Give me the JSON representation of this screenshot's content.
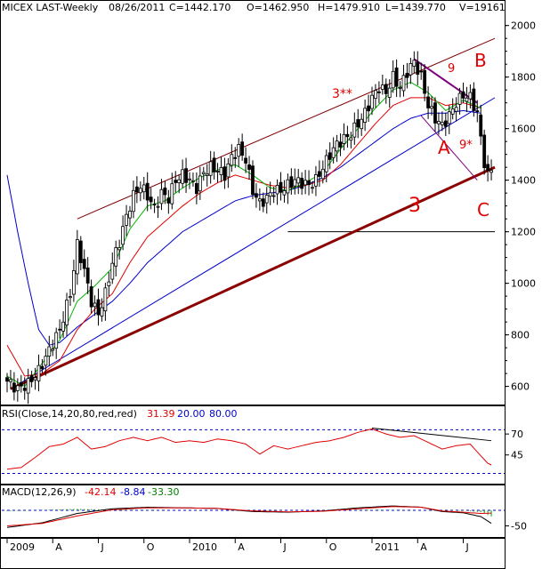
{
  "header": {
    "symbol": "MICEX LAST-Weekly",
    "date": "08/26/2011",
    "close": "C=1442.170",
    "open": "O=1462.950",
    "high": "H=1479.910",
    "low": "L=1439.770",
    "volume": "V=19161"
  },
  "colors": {
    "candle": "#000000",
    "ma_fast": "#00b400",
    "ma_mid": "#e00000",
    "ma_slow": "#0000cc",
    "channel": "#800000",
    "trendline": "#8b0000",
    "wedge": "#800080",
    "annotation": "#e00000",
    "rsi": "#e00000",
    "macd_line": "#000000",
    "macd_signal": "#e00000",
    "macd_hist": "#00a000"
  },
  "annotations": {
    "b": "B",
    "a": "A",
    "c": "C",
    "three": "3",
    "three_star": "3**",
    "nine": "9",
    "nine_star": "9*"
  },
  "rsi_panel": {
    "title": "RSI(Close,14,20,80,red,red)",
    "value": "31.39",
    "lower": "20.00",
    "upper": "80.00",
    "ticks": [
      "70",
      "45"
    ]
  },
  "macd_panel": {
    "title": "MACD(12,26,9)",
    "macd": "-42.14",
    "signal": "-8.84",
    "hist": "-33.30",
    "ticks": [
      "-50"
    ]
  },
  "chart_data": {
    "type": "candlestick",
    "title": "MICEX LAST-Weekly",
    "ylim": [
      540,
      2030
    ],
    "yticks": [
      600,
      800,
      1000,
      1200,
      1400,
      1600,
      1800,
      2000
    ],
    "ytick_labels": [
      "600",
      "800",
      "1000",
      "1200",
      "1400",
      "1600",
      "1800",
      "2000"
    ],
    "x_labels": [
      "2009",
      "A",
      "J",
      "O",
      "2010",
      "A",
      "J",
      "O",
      "2011",
      "A",
      "J"
    ],
    "x_label_weeks": [
      0,
      13,
      26,
      39,
      52,
      65,
      78,
      91,
      104,
      117,
      130
    ],
    "n_weeks": 139,
    "series": [
      {
        "name": "MICEX LAST",
        "close_anchors": [
          [
            0,
            620
          ],
          [
            3,
            590
          ],
          [
            6,
            610
          ],
          [
            9,
            660
          ],
          [
            12,
            740
          ],
          [
            15,
            820
          ],
          [
            18,
            960
          ],
          [
            20,
            1150
          ],
          [
            22,
            1050
          ],
          [
            24,
            930
          ],
          [
            26,
            880
          ],
          [
            28,
            960
          ],
          [
            30,
            1080
          ],
          [
            32,
            1160
          ],
          [
            34,
            1260
          ],
          [
            36,
            1340
          ],
          [
            38,
            1380
          ],
          [
            40,
            1340
          ],
          [
            42,
            1290
          ],
          [
            44,
            1350
          ],
          [
            46,
            1330
          ],
          [
            48,
            1400
          ],
          [
            50,
            1420
          ],
          [
            52,
            1400
          ],
          [
            54,
            1370
          ],
          [
            56,
            1430
          ],
          [
            58,
            1450
          ],
          [
            60,
            1440
          ],
          [
            62,
            1420
          ],
          [
            64,
            1490
          ],
          [
            66,
            1520
          ],
          [
            68,
            1480
          ],
          [
            70,
            1360
          ],
          [
            72,
            1310
          ],
          [
            74,
            1330
          ],
          [
            76,
            1360
          ],
          [
            78,
            1360
          ],
          [
            80,
            1380
          ],
          [
            82,
            1400
          ],
          [
            84,
            1390
          ],
          [
            86,
            1380
          ],
          [
            88,
            1400
          ],
          [
            90,
            1450
          ],
          [
            92,
            1500
          ],
          [
            94,
            1540
          ],
          [
            96,
            1560
          ],
          [
            98,
            1580
          ],
          [
            100,
            1620
          ],
          [
            102,
            1660
          ],
          [
            104,
            1720
          ],
          [
            106,
            1760
          ],
          [
            108,
            1740
          ],
          [
            110,
            1800
          ],
          [
            112,
            1760
          ],
          [
            114,
            1820
          ],
          [
            116,
            1860
          ],
          [
            118,
            1800
          ],
          [
            120,
            1690
          ],
          [
            122,
            1640
          ],
          [
            124,
            1610
          ],
          [
            126,
            1650
          ],
          [
            128,
            1700
          ],
          [
            130,
            1730
          ],
          [
            132,
            1720
          ],
          [
            134,
            1660
          ],
          [
            135,
            1560
          ],
          [
            136,
            1470
          ],
          [
            137,
            1420
          ],
          [
            138,
            1440
          ]
        ]
      }
    ],
    "moving_averages": {
      "fast": [
        [
          0,
          640
        ],
        [
          5,
          600
        ],
        [
          10,
          690
        ],
        [
          15,
          780
        ],
        [
          20,
          930
        ],
        [
          25,
          990
        ],
        [
          30,
          1060
        ],
        [
          35,
          1210
        ],
        [
          40,
          1300
        ],
        [
          45,
          1320
        ],
        [
          50,
          1370
        ],
        [
          55,
          1410
        ],
        [
          60,
          1440
        ],
        [
          65,
          1460
        ],
        [
          70,
          1420
        ],
        [
          75,
          1370
        ],
        [
          80,
          1360
        ],
        [
          85,
          1390
        ],
        [
          90,
          1430
        ],
        [
          95,
          1520
        ],
        [
          100,
          1600
        ],
        [
          105,
          1680
        ],
        [
          110,
          1750
        ],
        [
          115,
          1780
        ],
        [
          120,
          1740
        ],
        [
          125,
          1670
        ],
        [
          130,
          1710
        ],
        [
          135,
          1680
        ]
      ],
      "mid": [
        [
          0,
          760
        ],
        [
          5,
          640
        ],
        [
          10,
          650
        ],
        [
          15,
          700
        ],
        [
          20,
          820
        ],
        [
          25,
          900
        ],
        [
          30,
          960
        ],
        [
          35,
          1080
        ],
        [
          40,
          1180
        ],
        [
          45,
          1240
        ],
        [
          50,
          1300
        ],
        [
          55,
          1350
        ],
        [
          60,
          1390
        ],
        [
          65,
          1420
        ],
        [
          70,
          1400
        ],
        [
          75,
          1380
        ],
        [
          80,
          1370
        ],
        [
          85,
          1380
        ],
        [
          90,
          1400
        ],
        [
          95,
          1460
        ],
        [
          100,
          1540
        ],
        [
          105,
          1620
        ],
        [
          110,
          1690
        ],
        [
          115,
          1720
        ],
        [
          120,
          1720
        ],
        [
          125,
          1690
        ],
        [
          130,
          1700
        ],
        [
          135,
          1680
        ]
      ],
      "slow": [
        [
          0,
          1420
        ],
        [
          3,
          1200
        ],
        [
          6,
          1000
        ],
        [
          9,
          820
        ],
        [
          12,
          760
        ],
        [
          15,
          770
        ],
        [
          20,
          830
        ],
        [
          25,
          880
        ],
        [
          30,
          930
        ],
        [
          35,
          1000
        ],
        [
          40,
          1080
        ],
        [
          45,
          1140
        ],
        [
          50,
          1200
        ],
        [
          55,
          1240
        ],
        [
          60,
          1280
        ],
        [
          65,
          1320
        ],
        [
          70,
          1340
        ],
        [
          75,
          1350
        ],
        [
          80,
          1360
        ],
        [
          85,
          1380
        ],
        [
          90,
          1410
        ],
        [
          95,
          1450
        ],
        [
          100,
          1500
        ],
        [
          105,
          1550
        ],
        [
          110,
          1600
        ],
        [
          115,
          1640
        ],
        [
          120,
          1660
        ],
        [
          125,
          1660
        ],
        [
          130,
          1670
        ],
        [
          135,
          1660
        ]
      ]
    },
    "lines": {
      "support_3": [
        [
          1,
          590
        ],
        [
          139,
          1450
        ]
      ],
      "blue_trend": [
        [
          1,
          590
        ],
        [
          139,
          1720
        ]
      ],
      "channel_upper": [
        [
          20,
          1250
        ],
        [
          139,
          1950
        ]
      ],
      "level_1200": [
        [
          80,
          1200
        ],
        [
          139,
          1200
        ]
      ],
      "wedge_top": [
        [
          116,
          1870
        ],
        [
          134,
          1700
        ]
      ],
      "wedge_bottom": [
        [
          118,
          1650
        ],
        [
          134,
          1400
        ]
      ]
    },
    "rsi": {
      "ylim": [
        20,
        80
      ],
      "guides": [
        75,
        23
      ],
      "values": [
        [
          0,
          28
        ],
        [
          4,
          30
        ],
        [
          8,
          42
        ],
        [
          12,
          55
        ],
        [
          16,
          58
        ],
        [
          20,
          66
        ],
        [
          24,
          52
        ],
        [
          28,
          55
        ],
        [
          32,
          62
        ],
        [
          36,
          66
        ],
        [
          40,
          62
        ],
        [
          44,
          66
        ],
        [
          48,
          60
        ],
        [
          52,
          62
        ],
        [
          56,
          60
        ],
        [
          60,
          64
        ],
        [
          64,
          62
        ],
        [
          68,
          58
        ],
        [
          72,
          46
        ],
        [
          76,
          56
        ],
        [
          80,
          52
        ],
        [
          84,
          56
        ],
        [
          88,
          60
        ],
        [
          92,
          62
        ],
        [
          96,
          66
        ],
        [
          100,
          72
        ],
        [
          104,
          76
        ],
        [
          108,
          70
        ],
        [
          112,
          66
        ],
        [
          116,
          68
        ],
        [
          120,
          60
        ],
        [
          124,
          52
        ],
        [
          128,
          56
        ],
        [
          132,
          58
        ],
        [
          135,
          44
        ],
        [
          137,
          35
        ],
        [
          138,
          33
        ]
      ]
    },
    "macd": {
      "ylim": [
        -80,
        40
      ],
      "macd_values": [
        [
          0,
          -55
        ],
        [
          10,
          -40
        ],
        [
          20,
          -10
        ],
        [
          30,
          5
        ],
        [
          40,
          10
        ],
        [
          50,
          8
        ],
        [
          60,
          6
        ],
        [
          70,
          -4
        ],
        [
          80,
          -6
        ],
        [
          90,
          -2
        ],
        [
          100,
          8
        ],
        [
          110,
          14
        ],
        [
          118,
          10
        ],
        [
          124,
          -4
        ],
        [
          130,
          -8
        ],
        [
          135,
          -20
        ],
        [
          138,
          -42
        ]
      ],
      "signal_values": [
        [
          0,
          -50
        ],
        [
          10,
          -42
        ],
        [
          20,
          -18
        ],
        [
          30,
          2
        ],
        [
          40,
          8
        ],
        [
          50,
          8
        ],
        [
          60,
          6
        ],
        [
          70,
          -2
        ],
        [
          80,
          -5
        ],
        [
          90,
          -3
        ],
        [
          100,
          5
        ],
        [
          110,
          12
        ],
        [
          118,
          10
        ],
        [
          124,
          -2
        ],
        [
          130,
          -6
        ],
        [
          135,
          -10
        ],
        [
          138,
          -9
        ]
      ]
    }
  }
}
